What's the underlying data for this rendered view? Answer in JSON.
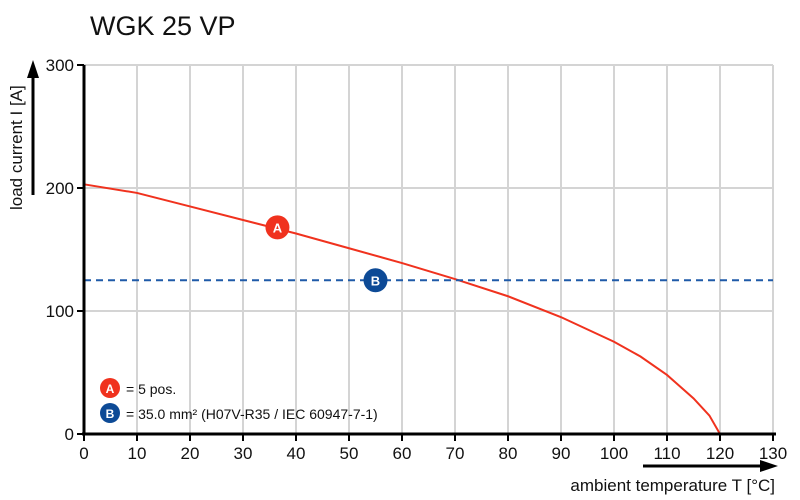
{
  "chart_data": {
    "type": "line",
    "title": "WGK 25 VP",
    "xlabel": "ambient temperature T [°C]",
    "ylabel": "load current I [A]",
    "xlim": [
      0,
      130
    ],
    "ylim": [
      0,
      300
    ],
    "xticks": [
      0,
      10,
      20,
      30,
      40,
      50,
      60,
      70,
      80,
      90,
      100,
      110,
      120,
      130
    ],
    "yticks": [
      0,
      100,
      200,
      300
    ],
    "grid": true,
    "series": [
      {
        "name": "A",
        "color": "#f0321e",
        "x": [
          0,
          10,
          20,
          30,
          40,
          50,
          60,
          70,
          80,
          90,
          100,
          105,
          110,
          115,
          118,
          120
        ],
        "y": [
          203,
          196,
          185,
          174,
          163,
          151,
          139,
          126,
          112,
          95,
          75,
          63,
          48,
          29,
          15,
          0
        ]
      },
      {
        "name": "B",
        "color": "#1f5aa8",
        "style": "dashed",
        "x": [
          0,
          130
        ],
        "y": [
          125,
          125
        ]
      }
    ],
    "markers": [
      {
        "label": "A",
        "x": 36.5,
        "y": 168,
        "color": "#f0321e"
      },
      {
        "label": "B",
        "x": 55,
        "y": 125,
        "color": "#0d4a96"
      }
    ],
    "legend": {
      "placement": "bottom-left",
      "items": [
        {
          "badge": "A",
          "text": "= 5 pos.",
          "color": "#f0321e"
        },
        {
          "badge": "B",
          "text": "= 35.0 mm² (H07V-R35 / IEC 60947-7-1)",
          "color": "#0d4a96"
        }
      ]
    }
  }
}
